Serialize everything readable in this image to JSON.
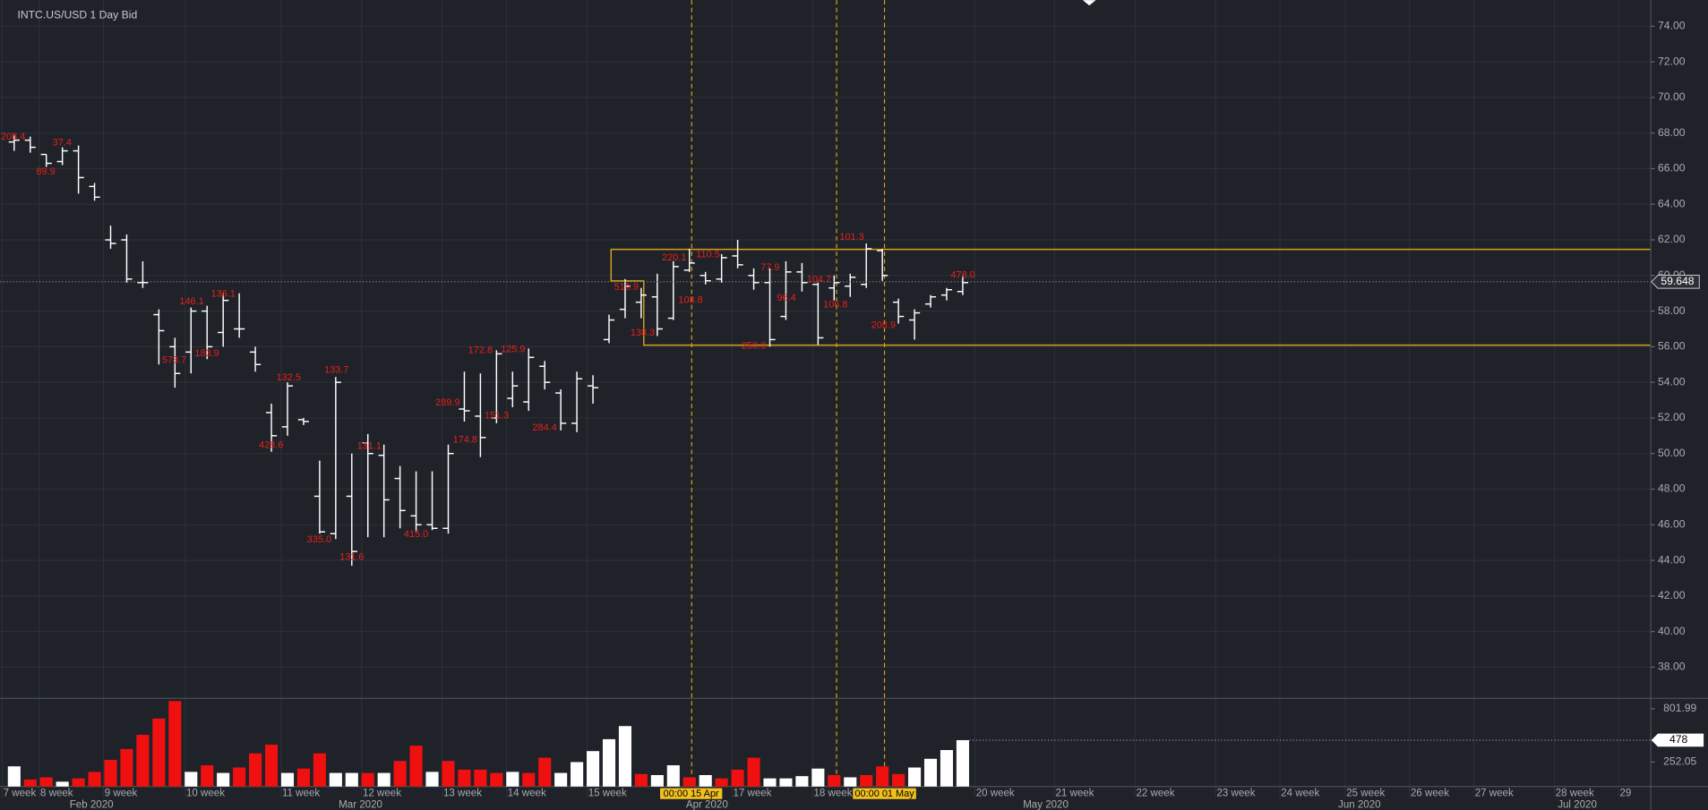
{
  "chart_data": {
    "type": "ohlc",
    "title": "INTC.US/USD  1 Day Bid",
    "color": "#ffffff",
    "grid": true,
    "ylim": [
      36.28,
      75.47
    ],
    "yticks": [
      {
        "value": 38,
        "label": "38.00"
      },
      {
        "value": 40,
        "label": "40.00"
      },
      {
        "value": 42,
        "label": "42.00"
      },
      {
        "value": 44,
        "label": "44.00"
      },
      {
        "value": 46,
        "label": "46.00"
      },
      {
        "value": 48,
        "label": "48.00"
      },
      {
        "value": 50,
        "label": "50.00"
      },
      {
        "value": 52,
        "label": "52.00"
      },
      {
        "value": 54,
        "label": "54.00"
      },
      {
        "value": 56,
        "label": "56.00"
      },
      {
        "value": 58,
        "label": "58.00"
      },
      {
        "value": 60,
        "label": "60.00"
      },
      {
        "value": 62,
        "label": "62.00"
      },
      {
        "value": 64,
        "label": "64.00"
      },
      {
        "value": 66,
        "label": "66.00"
      },
      {
        "value": 68,
        "label": "68.00"
      },
      {
        "value": 70,
        "label": "70.00"
      },
      {
        "value": 72,
        "label": "72.00"
      },
      {
        "value": 74,
        "label": "74.00"
      }
    ],
    "open": [
      67.5,
      67.6,
      66.8,
      66.4,
      67.0,
      65.0,
      62.0,
      62.0,
      59.6,
      57.8,
      56,
      55.7,
      58,
      56.8,
      57,
      55.7,
      52.3,
      51.5,
      51.9,
      47.6,
      45.5,
      47.6,
      50.6,
      49.9,
      48.6,
      46.5,
      46,
      45.8,
      52.5,
      52.1,
      52,
      53.1,
      52.9,
      54.9,
      53.4,
      51.7,
      53.8,
      56.4,
      58.1,
      58.5,
      58.8,
      57.6,
      60.3,
      60.0,
      59.8,
      61.1,
      60,
      59.6,
      57.7,
      60.2,
      59.5,
      59.3,
      59.4,
      59.5,
      61.4,
      58.5,
      57.5,
      58.4,
      58.9,
      59.1
    ],
    "high": [
      67.9,
      67.8,
      66.8,
      67.2,
      67.3,
      65.2,
      62.8,
      62.3,
      60.8,
      58.1,
      56.5,
      58.2,
      58.3,
      59.0,
      59,
      56,
      52.8,
      54,
      52,
      49.6,
      54.3,
      50,
      51.1,
      50.5,
      49.3,
      49,
      49,
      50.5,
      54.6,
      54.5,
      55.8,
      54.6,
      55.9,
      55.2,
      53.6,
      54.6,
      54.4,
      57.8,
      59.8,
      59.3,
      60.1,
      60.8,
      61.5,
      60.2,
      61.2,
      62,
      60.4,
      60.4,
      60.8,
      60.7,
      59.6,
      60,
      60.1,
      61.8,
      61.5,
      58.7,
      58.1,
      58.9,
      59.3,
      60
    ],
    "low": [
      67.0,
      66.9,
      66.1,
      66.2,
      64.6,
      64.2,
      61.5,
      59.6,
      59.3,
      55.0,
      53.7,
      54.5,
      55.3,
      56,
      56.5,
      54.6,
      50.1,
      51,
      51.6,
      45.5,
      45.2,
      43.7,
      45.3,
      45.3,
      45.8,
      45.6,
      45.7,
      45.5,
      51.8,
      49.8,
      51.7,
      52.6,
      52.4,
      53.6,
      51.3,
      51.2,
      52.8,
      56.2,
      57.6,
      57.6,
      56.6,
      57.5,
      60.2,
      59.5,
      59.6,
      60.4,
      59.2,
      56,
      57.5,
      59.1,
      56.1,
      58.6,
      58.8,
      59.3,
      59.7,
      57.3,
      56.4,
      58.2,
      58.6,
      58.9
    ],
    "close": [
      67.6,
      67.2,
      66.3,
      67.0,
      65.5,
      64.4,
      61.8,
      59.8,
      59.6,
      56.9,
      54.5,
      58,
      56,
      58.6,
      57,
      55,
      51,
      53.8,
      51.8,
      45.6,
      54,
      44.5,
      50,
      47.4,
      46.8,
      46,
      45.8,
      50,
      52.4,
      50.9,
      55.6,
      53.8,
      55.4,
      54,
      51.7,
      54.2,
      53.7,
      57.5,
      59.4,
      58.9,
      57.0,
      60.5,
      60.7,
      59.7,
      61,
      60.6,
      59.6,
      56.4,
      60.2,
      59.6,
      56.5,
      59.6,
      59.9,
      61.5,
      60.0,
      57.7,
      57.9,
      58.8,
      59.2,
      59.6
    ],
    "last_price": 59.648,
    "annotations": [
      "208.4",
      "37.4",
      "89.9",
      "573.7",
      "146.1",
      "183.9",
      "136.1",
      "428.6",
      "132.5",
      "133.7",
      "335.0",
      "131.6",
      "131.1",
      "415.0",
      "289.9",
      "174.8",
      "172.8",
      "151.3",
      "125.9",
      "284.4",
      "519.9",
      "138.3",
      "220.1",
      "110.5",
      "108.8",
      "77.9",
      "250.0",
      "96.4",
      "104.7",
      "106.8",
      "101.3",
      "208.9",
      "478.0"
    ],
    "time_markers": [
      "00:00 15 Apr",
      "00:00 01 May"
    ],
    "week_labels": [
      "7 week",
      "8 week",
      "9 week",
      "10 week",
      "11 week",
      "12 week",
      "13 week",
      "14 week",
      "15 week",
      "17 week",
      "18 week",
      "20 week",
      "21 week",
      "22 week",
      "23 week",
      "24 week",
      "25 week",
      "26 week",
      "27 week",
      "28 week",
      "29"
    ],
    "month_labels": [
      "Feb 2020",
      "Mar 2020",
      "Apr 2020",
      "May 2020",
      "Jun 2020",
      "Jul 2020"
    ],
    "volume": {
      "ylim": [
        0,
        892
      ],
      "yticks": [
        252.05,
        801.99
      ],
      "values": [
        208,
        73,
        95,
        50,
        84,
        151,
        275,
        387,
        533,
        701,
        881,
        151,
        219,
        140,
        196,
        342,
        432,
        140,
        185,
        342,
        140,
        140,
        140,
        140,
        264,
        421,
        151,
        264,
        174,
        174,
        140,
        151,
        140,
        297,
        140,
        252,
        365,
        488,
        623,
        129,
        118,
        219,
        95,
        118,
        84,
        174,
        297,
        84,
        84,
        107,
        185,
        118,
        95,
        118,
        208,
        129,
        196,
        286,
        376,
        478
      ],
      "colors": [
        "#ffffff",
        "#f01010",
        "#f01010",
        "#ffffff",
        "#f01010",
        "#f01010",
        "#f01010",
        "#f01010",
        "#f01010",
        "#f01010",
        "#f01010",
        "#ffffff",
        "#f01010",
        "#ffffff",
        "#f01010",
        "#f01010",
        "#f01010",
        "#ffffff",
        "#f01010",
        "#f01010",
        "#ffffff",
        "#ffffff",
        "#f01010",
        "#ffffff",
        "#f01010",
        "#f01010",
        "#ffffff",
        "#f01010",
        "#f01010",
        "#f01010",
        "#f01010",
        "#ffffff",
        "#f01010",
        "#f01010",
        "#ffffff",
        "#ffffff",
        "#ffffff",
        "#ffffff",
        "#ffffff",
        "#f01010",
        "#ffffff",
        "#ffffff",
        "#f01010",
        "#ffffff",
        "#f01010",
        "#f01010",
        "#f01010",
        "#ffffff",
        "#ffffff",
        "#ffffff",
        "#ffffff",
        "#f01010",
        "#ffffff",
        "#f01010",
        "#f01010",
        "#f01010",
        "#ffffff",
        "#ffffff",
        "#ffffff",
        "#ffffff"
      ]
    }
  }
}
